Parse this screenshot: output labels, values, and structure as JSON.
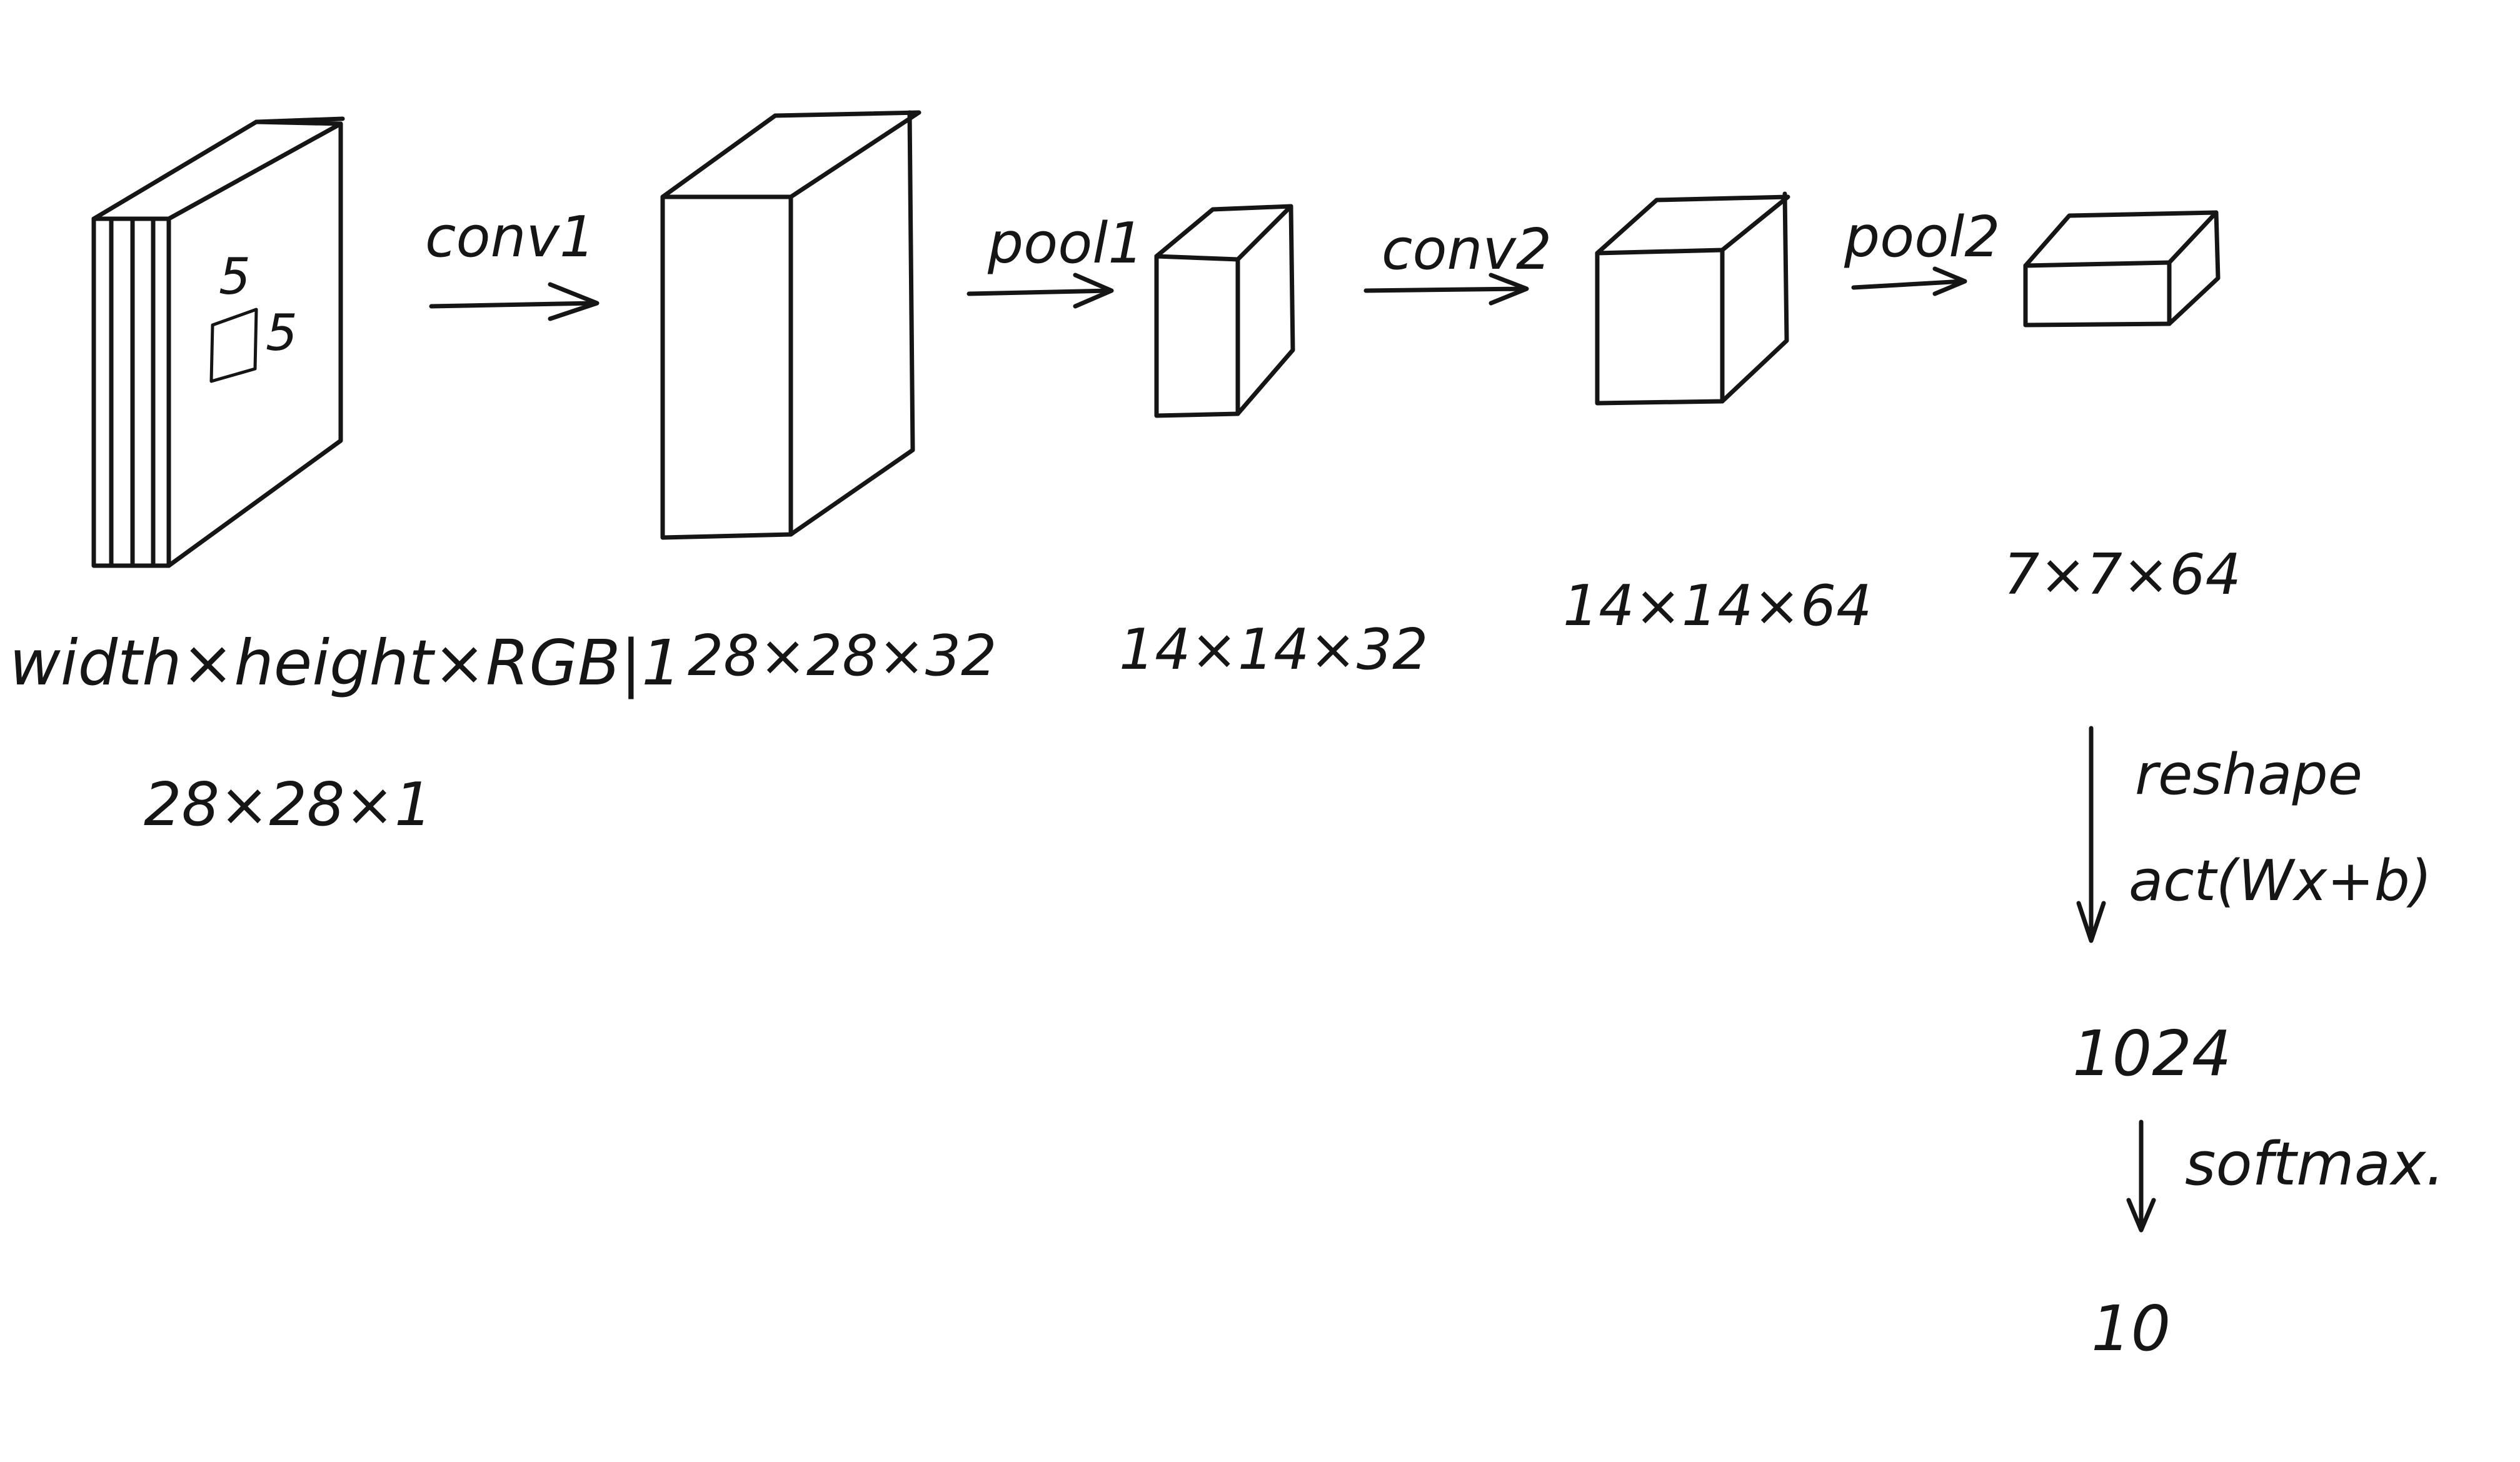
{
  "labels": {
    "input_dims": "width×height×RGB|1",
    "input_size": "28×28×1",
    "kernel_h": "5",
    "kernel_w": "5",
    "conv1": "conv1",
    "conv1_out": "28×28×32",
    "pool1": "pool1",
    "pool1_out": "14×14×32",
    "conv2": "conv2",
    "conv2_out": "14×14×64",
    "pool2": "pool2",
    "pool2_out": "7×7×64",
    "reshape": "reshape",
    "activation": "act(Wx+b)",
    "fc_out": "1024",
    "softmax": "softmax.",
    "final_out": "10"
  },
  "colors": {
    "ink": "#151515",
    "paper": "#ffffff"
  }
}
